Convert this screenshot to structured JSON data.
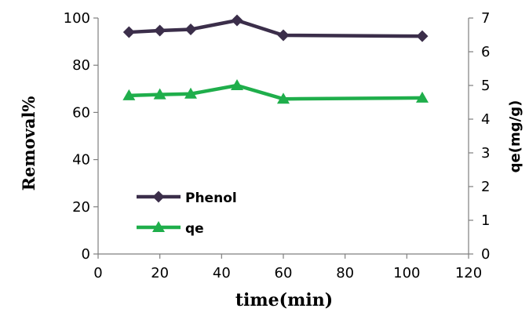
{
  "chart_data": {
    "type": "line",
    "xlabel": "time(min)",
    "ylabel": "Removal%",
    "y2label": "qe(mg/g)",
    "xlim": [
      0,
      120
    ],
    "ylim": [
      0,
      100
    ],
    "y2lim": [
      0,
      7
    ],
    "xticks": [
      0,
      20,
      40,
      60,
      80,
      100,
      120
    ],
    "yticks": [
      0,
      20,
      40,
      60,
      80,
      100
    ],
    "y2ticks": [
      0,
      1,
      2,
      3,
      4,
      5,
      6,
      7
    ],
    "grid": false,
    "legend_position": "lower-left",
    "series": [
      {
        "name": "Phenol",
        "axis": "left",
        "color": "#3b2e4a",
        "marker": "diamond",
        "x": [
          10,
          20,
          30,
          45,
          60,
          105
        ],
        "y": [
          94,
          94.7,
          95.2,
          99,
          92.7,
          92.3
        ]
      },
      {
        "name": "qe",
        "axis": "right",
        "color": "#1fae4b",
        "marker": "triangle",
        "x": [
          10,
          20,
          30,
          45,
          60,
          105
        ],
        "y": [
          4.7,
          4.73,
          4.75,
          5.0,
          4.6,
          4.63
        ]
      }
    ]
  }
}
